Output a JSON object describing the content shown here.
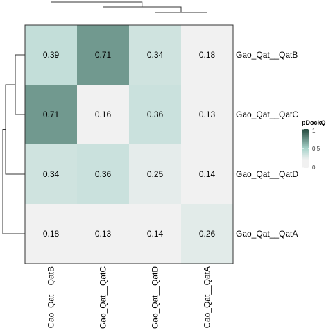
{
  "chart_data": {
    "type": "heatmap",
    "title": "",
    "xlabel": "",
    "ylabel": "",
    "columns": [
      "Gao_Qat__QatB",
      "Gao_Qat__QatC",
      "Gao_Qat__QatD",
      "Gao_Qat__QatA"
    ],
    "rows": [
      "Gao_Qat__QatB",
      "Gao_Qat__QatC",
      "Gao_Qat__QatD",
      "Gao_Qat__QatA"
    ],
    "values": [
      [
        0.39,
        0.71,
        0.34,
        0.18
      ],
      [
        0.71,
        0.16,
        0.36,
        0.13
      ],
      [
        0.34,
        0.36,
        0.25,
        0.14
      ],
      [
        0.18,
        0.13,
        0.14,
        0.26
      ]
    ],
    "value_labels": [
      [
        "0.39",
        "0.71",
        "0.34",
        "0.18"
      ],
      [
        "0.71",
        "0.16",
        "0.36",
        "0.13"
      ],
      [
        "0.34",
        "0.36",
        "0.25",
        "0.14"
      ],
      [
        "0.18",
        "0.13",
        "0.14",
        "0.26"
      ]
    ],
    "color_scale": {
      "range": [
        0,
        1
      ],
      "stops": [
        {
          "value": 0.0,
          "color": "#f1f1f1"
        },
        {
          "value": 0.2,
          "color": "#f1f1f1"
        },
        {
          "value": 0.5,
          "color": "#a8d3cb"
        },
        {
          "value": 1.0,
          "color": "#24493d"
        }
      ]
    },
    "legend": {
      "title": "pDockQ",
      "ticks": [
        "1",
        "0.5",
        "0"
      ],
      "tick_values": [
        1,
        0.5,
        0
      ],
      "placement": "right"
    },
    "dendrograms": {
      "rows": true,
      "columns": true
    }
  }
}
